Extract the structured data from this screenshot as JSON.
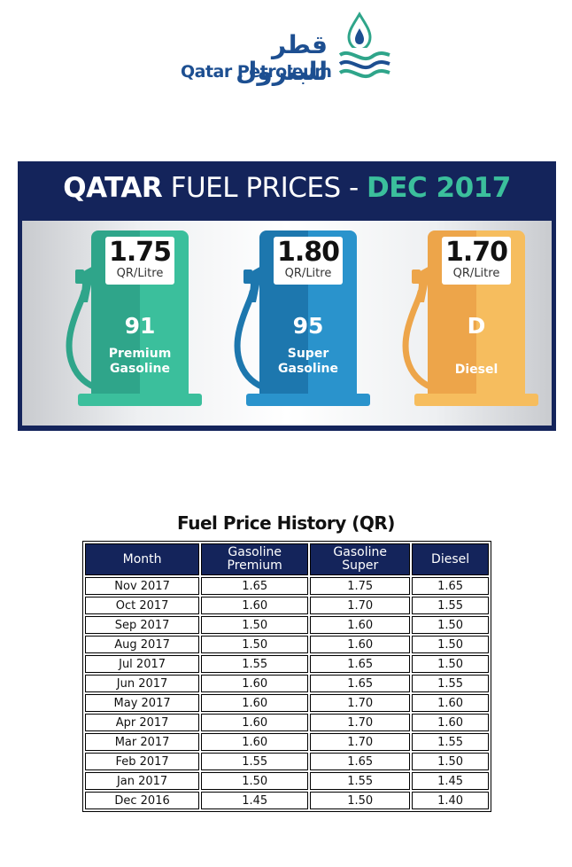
{
  "logo": {
    "arabic": "قطر للبترول",
    "english": "Qatar Petroleum"
  },
  "banner": {
    "title_bold": "QATAR",
    "title_regular": " FUEL PRICES - ",
    "title_date": "DEC 2017",
    "unit": "QR/Litre",
    "pumps": [
      {
        "price": "1.75",
        "grade": "91",
        "name_line1": "Premium",
        "name_line2": "Gasoline",
        "color_left": "#2fa58a",
        "color_right": "#3bbf9c"
      },
      {
        "price": "1.80",
        "grade": "95",
        "name_line1": "Super",
        "name_line2": "Gasoline",
        "color_left": "#1d77ae",
        "color_right": "#2a93cc"
      },
      {
        "price": "1.70",
        "grade": "D",
        "name_line1": "",
        "name_line2": "Diesel",
        "color_left": "#eda54a",
        "color_right": "#f6bd5e"
      }
    ]
  },
  "history": {
    "title": "Fuel Price History (QR)",
    "headers": {
      "month": "Month",
      "premium_l1": "Gasoline",
      "premium_l2": "Premium",
      "super_l1": "Gasoline",
      "super_l2": "Super",
      "diesel": "Diesel"
    },
    "rows": [
      {
        "month": "Nov 2017",
        "premium": "1.65",
        "super": "1.75",
        "diesel": "1.65"
      },
      {
        "month": "Oct 2017",
        "premium": "1.60",
        "super": "1.70",
        "diesel": "1.55"
      },
      {
        "month": "Sep 2017",
        "premium": "1.50",
        "super": "1.60",
        "diesel": "1.50"
      },
      {
        "month": "Aug 2017",
        "premium": "1.50",
        "super": "1.60",
        "diesel": "1.50"
      },
      {
        "month": "Jul 2017",
        "premium": "1.55",
        "super": "1.65",
        "diesel": "1.50"
      },
      {
        "month": "Jun 2017",
        "premium": "1.60",
        "super": "1.65",
        "diesel": "1.55"
      },
      {
        "month": "May 2017",
        "premium": "1.60",
        "super": "1.70",
        "diesel": "1.60"
      },
      {
        "month": "Apr 2017",
        "premium": "1.60",
        "super": "1.70",
        "diesel": "1.60"
      },
      {
        "month": "Mar 2017",
        "premium": "1.60",
        "super": "1.70",
        "diesel": "1.55"
      },
      {
        "month": "Feb 2017",
        "premium": "1.55",
        "super": "1.65",
        "diesel": "1.50"
      },
      {
        "month": "Jan 2017",
        "premium": "1.50",
        "super": "1.55",
        "diesel": "1.45"
      },
      {
        "month": "Dec 2016",
        "premium": "1.45",
        "super": "1.50",
        "diesel": "1.40"
      }
    ]
  }
}
